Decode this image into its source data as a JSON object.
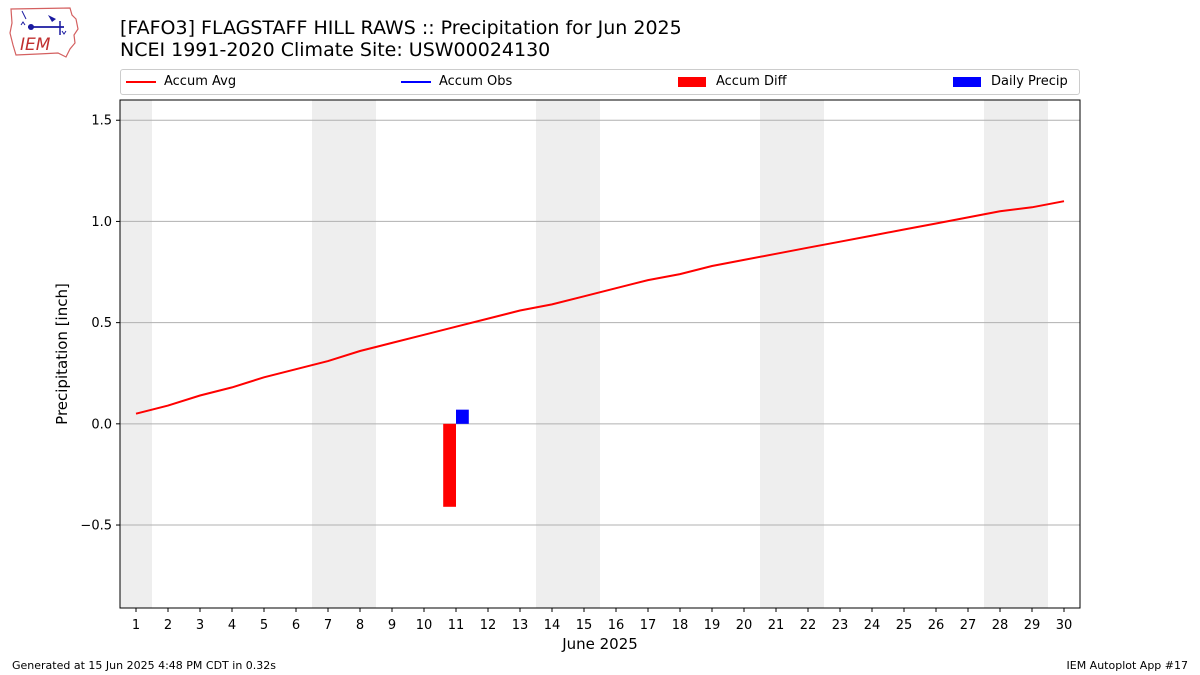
{
  "header": {
    "title_line1": "[FAFO3] FLAGSTAFF HILL RAWS :: Precipitation for Jun 2025",
    "title_line2": "NCEI 1991-2020 Climate Site: USW00024130",
    "logo_icon": "iem-logo-icon",
    "logo_text": "IEM"
  },
  "legend": {
    "items": [
      {
        "label": "Accum Avg",
        "color": "#ff0000",
        "kind": "line"
      },
      {
        "label": "Accum Obs",
        "color": "#0000ff",
        "kind": "line"
      },
      {
        "label": "Accum Diff",
        "color": "#ff0000",
        "kind": "bar"
      },
      {
        "label": "Daily Precip",
        "color": "#0000ff",
        "kind": "bar"
      }
    ]
  },
  "footer": {
    "left": "Generated at 15 Jun 2025 4:48 PM CDT in 0.32s",
    "right": "IEM Autoplot App #17"
  },
  "chart_data": {
    "type": "line",
    "title": "[FAFO3] FLAGSTAFF HILL RAWS :: Precipitation for Jun 2025",
    "subtitle": "NCEI 1991-2020 Climate Site: USW00024130",
    "xlabel": "June 2025",
    "ylabel": "Precipitation [inch]",
    "ylim": [
      -0.91,
      1.6
    ],
    "xlim": [
      0.5,
      30.5
    ],
    "yticks": [
      -0.5,
      0.0,
      0.5,
      1.0,
      1.5
    ],
    "ytick_labels": [
      "−0.5",
      "0.0",
      "0.5",
      "1.0",
      "1.5"
    ],
    "x": [
      1,
      2,
      3,
      4,
      5,
      6,
      7,
      8,
      9,
      10,
      11,
      12,
      13,
      14,
      15,
      16,
      17,
      18,
      19,
      20,
      21,
      22,
      23,
      24,
      25,
      26,
      27,
      28,
      29,
      30
    ],
    "grid": "horizontal",
    "weekend_shading_days": [
      1,
      7,
      8,
      14,
      15,
      21,
      22,
      28,
      29
    ],
    "shading_color": "#eeeeee",
    "series": [
      {
        "name": "Accum Avg",
        "kind": "line",
        "color": "#ff0000",
        "x": [
          1,
          2,
          3,
          4,
          5,
          6,
          7,
          8,
          9,
          10,
          11,
          12,
          13,
          14,
          15,
          16,
          17,
          18,
          19,
          20,
          21,
          22,
          23,
          24,
          25,
          26,
          27,
          28,
          29,
          30
        ],
        "values": [
          0.05,
          0.09,
          0.14,
          0.18,
          0.23,
          0.27,
          0.31,
          0.36,
          0.4,
          0.44,
          0.48,
          0.52,
          0.56,
          0.59,
          0.63,
          0.67,
          0.71,
          0.74,
          0.78,
          0.81,
          0.84,
          0.87,
          0.9,
          0.93,
          0.96,
          0.99,
          1.02,
          1.05,
          1.07,
          1.1
        ]
      },
      {
        "name": "Accum Obs",
        "kind": "line",
        "color": "#0000ff",
        "x": [],
        "values": []
      },
      {
        "name": "Accum Diff",
        "kind": "bar",
        "color": "#ff0000",
        "x": [
          10.8
        ],
        "values": [
          -0.41
        ]
      },
      {
        "name": "Daily Precip",
        "kind": "bar",
        "color": "#0000ff",
        "x": [
          11.2
        ],
        "values": [
          0.07
        ]
      }
    ]
  }
}
